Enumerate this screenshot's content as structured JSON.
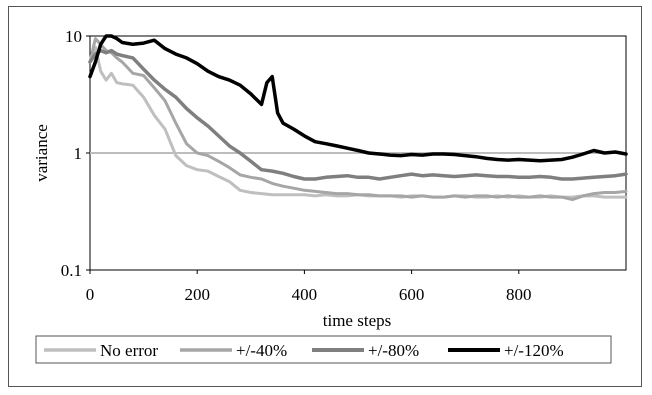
{
  "chart_data": {
    "type": "line",
    "title": "",
    "xlabel": "time steps",
    "ylabel": "variance",
    "xlim": [
      0,
      1000
    ],
    "ylim": [
      0.1,
      10
    ],
    "yscale": "log",
    "xticks": [
      0,
      200,
      400,
      600,
      800
    ],
    "yticks": [
      0.1,
      1,
      10
    ],
    "ytick_labels": [
      "0.1",
      "1",
      "10"
    ],
    "reference_line": {
      "y": 1,
      "color": "#bdbdbd"
    },
    "legend_position": "bottom",
    "series": [
      {
        "name": "No error",
        "color": "#bfbfbf",
        "width": 3,
        "x": [
          0,
          10,
          20,
          30,
          40,
          50,
          60,
          80,
          100,
          120,
          140,
          160,
          180,
          200,
          220,
          240,
          260,
          280,
          300,
          320,
          340,
          360,
          380,
          400,
          420,
          440,
          460,
          480,
          500,
          520,
          540,
          560,
          580,
          600,
          620,
          640,
          660,
          680,
          700,
          720,
          740,
          760,
          780,
          800,
          820,
          840,
          860,
          880,
          900,
          920,
          940,
          960,
          980,
          1000
        ],
        "y": [
          6.0,
          8.0,
          5.0,
          4.2,
          4.8,
          4.0,
          3.9,
          3.8,
          3.0,
          2.1,
          1.6,
          0.95,
          0.78,
          0.72,
          0.7,
          0.63,
          0.57,
          0.48,
          0.46,
          0.45,
          0.44,
          0.44,
          0.44,
          0.44,
          0.43,
          0.44,
          0.43,
          0.43,
          0.44,
          0.43,
          0.43,
          0.43,
          0.42,
          0.43,
          0.43,
          0.42,
          0.42,
          0.43,
          0.43,
          0.42,
          0.42,
          0.43,
          0.42,
          0.43,
          0.42,
          0.42,
          0.43,
          0.42,
          0.42,
          0.43,
          0.43,
          0.42,
          0.42,
          0.42
        ]
      },
      {
        "name": "+/-40%",
        "color": "#a6a6a6",
        "width": 3,
        "x": [
          0,
          10,
          20,
          30,
          40,
          50,
          60,
          80,
          100,
          120,
          140,
          160,
          180,
          200,
          220,
          240,
          260,
          280,
          300,
          320,
          340,
          360,
          380,
          400,
          420,
          440,
          460,
          480,
          500,
          520,
          540,
          560,
          580,
          600,
          620,
          640,
          660,
          680,
          700,
          720,
          740,
          760,
          780,
          800,
          820,
          840,
          860,
          880,
          900,
          920,
          940,
          960,
          980,
          1000
        ],
        "y": [
          6.0,
          9.5,
          8.5,
          7.5,
          7.2,
          6.5,
          6.0,
          4.8,
          4.6,
          3.6,
          2.8,
          1.8,
          1.2,
          1.0,
          0.95,
          0.85,
          0.75,
          0.65,
          0.62,
          0.6,
          0.55,
          0.52,
          0.5,
          0.48,
          0.47,
          0.46,
          0.45,
          0.45,
          0.44,
          0.44,
          0.43,
          0.43,
          0.43,
          0.42,
          0.43,
          0.42,
          0.42,
          0.43,
          0.42,
          0.43,
          0.43,
          0.42,
          0.43,
          0.42,
          0.42,
          0.43,
          0.42,
          0.42,
          0.4,
          0.43,
          0.45,
          0.46,
          0.46,
          0.47
        ]
      },
      {
        "name": "+/-80%",
        "color": "#7f7f7f",
        "width": 3.5,
        "x": [
          0,
          10,
          20,
          30,
          40,
          50,
          60,
          80,
          100,
          120,
          140,
          160,
          180,
          200,
          220,
          240,
          260,
          280,
          300,
          320,
          340,
          360,
          380,
          400,
          420,
          440,
          460,
          480,
          500,
          520,
          540,
          560,
          580,
          600,
          620,
          640,
          660,
          680,
          700,
          720,
          740,
          760,
          780,
          800,
          820,
          840,
          860,
          880,
          900,
          920,
          940,
          960,
          980,
          1000
        ],
        "y": [
          6.0,
          7.0,
          7.5,
          7.2,
          7.5,
          7.0,
          6.8,
          6.5,
          5.2,
          4.2,
          3.5,
          3.0,
          2.4,
          2.0,
          1.7,
          1.4,
          1.15,
          1.0,
          0.85,
          0.72,
          0.7,
          0.67,
          0.63,
          0.6,
          0.6,
          0.62,
          0.63,
          0.64,
          0.62,
          0.62,
          0.6,
          0.62,
          0.64,
          0.66,
          0.64,
          0.65,
          0.64,
          0.63,
          0.64,
          0.65,
          0.64,
          0.63,
          0.63,
          0.62,
          0.62,
          0.63,
          0.62,
          0.6,
          0.6,
          0.61,
          0.62,
          0.63,
          0.64,
          0.66
        ]
      },
      {
        "name": "+/-120%",
        "color": "#000000",
        "width": 3.5,
        "x": [
          0,
          10,
          20,
          30,
          40,
          50,
          60,
          80,
          100,
          120,
          140,
          160,
          180,
          200,
          220,
          240,
          260,
          280,
          300,
          320,
          330,
          340,
          350,
          360,
          380,
          400,
          420,
          440,
          460,
          480,
          500,
          520,
          540,
          560,
          580,
          600,
          620,
          640,
          660,
          680,
          700,
          720,
          740,
          760,
          780,
          800,
          820,
          840,
          860,
          880,
          900,
          920,
          940,
          960,
          980,
          1000
        ],
        "y": [
          4.5,
          6.0,
          8.5,
          10.5,
          10.0,
          9.5,
          8.8,
          8.5,
          8.7,
          9.2,
          7.8,
          7.0,
          6.5,
          5.8,
          5.0,
          4.5,
          4.2,
          3.8,
          3.2,
          2.6,
          4.0,
          4.5,
          2.2,
          1.8,
          1.6,
          1.4,
          1.25,
          1.2,
          1.15,
          1.1,
          1.05,
          1.0,
          0.98,
          0.96,
          0.95,
          0.97,
          0.96,
          0.98,
          0.98,
          0.97,
          0.95,
          0.93,
          0.9,
          0.88,
          0.87,
          0.88,
          0.87,
          0.86,
          0.87,
          0.88,
          0.92,
          0.98,
          1.05,
          1.0,
          1.02,
          0.98
        ]
      }
    ]
  }
}
